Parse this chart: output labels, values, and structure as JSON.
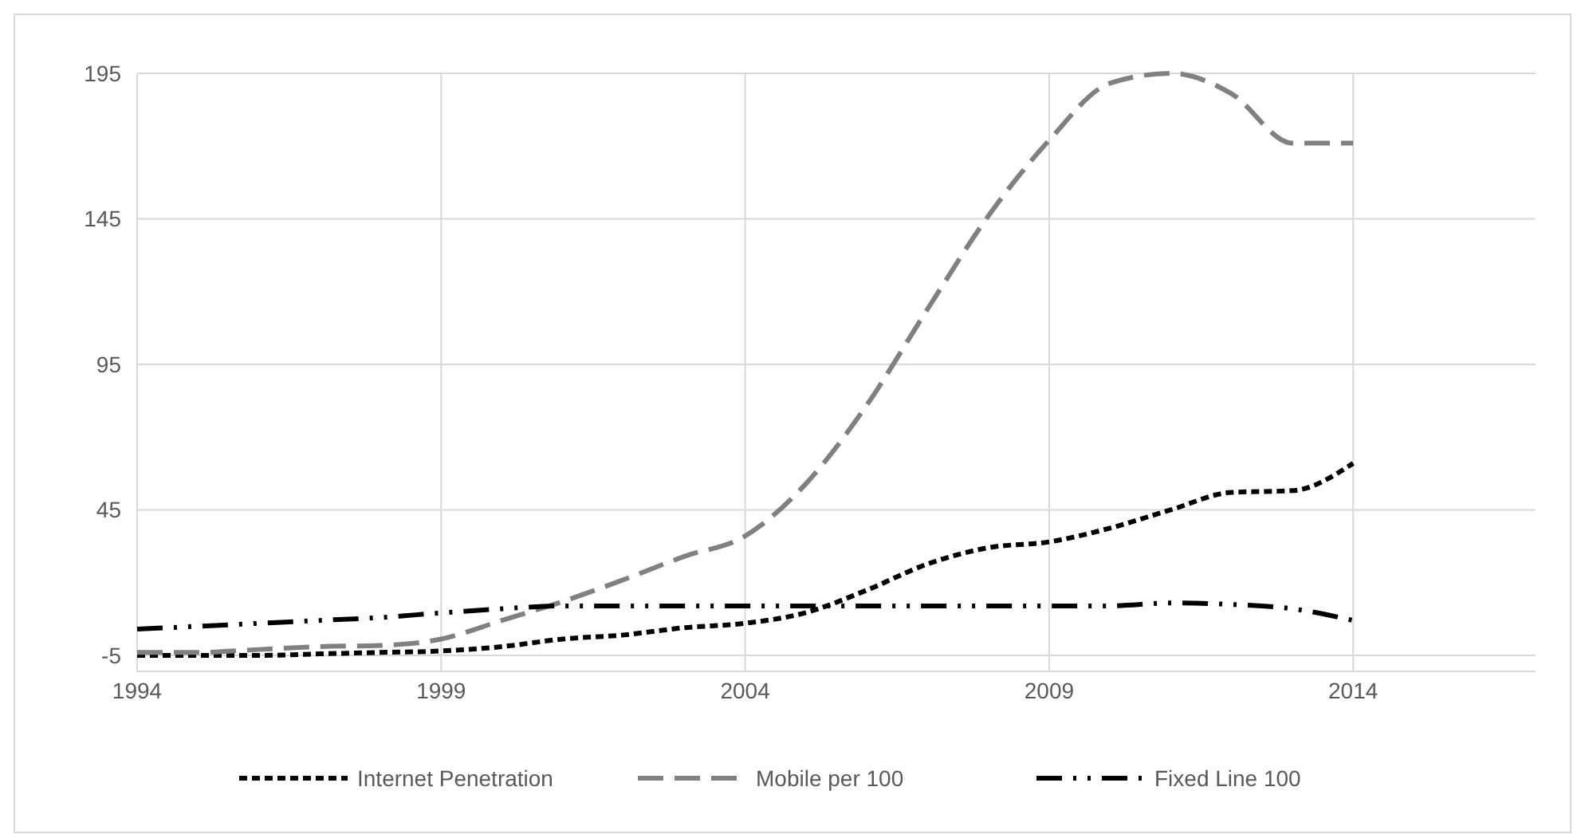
{
  "chart_data": {
    "type": "line",
    "x": [
      1994,
      1995,
      1996,
      1997,
      1998,
      1999,
      2000,
      2001,
      2002,
      2003,
      2004,
      2005,
      2006,
      2007,
      2008,
      2009,
      2010,
      2011,
      2012,
      2013,
      2014
    ],
    "xlim": [
      1994,
      2017
    ],
    "xticks": [
      1994,
      1999,
      2004,
      2009,
      2014
    ],
    "ylim": [
      -10.5,
      195
    ],
    "yticks": [
      -5,
      45,
      95,
      145,
      195
    ],
    "grid": true,
    "legend": "bottom",
    "marker": "none",
    "series": [
      {
        "name": "Internet Penetration",
        "color": "#000000",
        "line_style": "dashed",
        "values": [
          -5,
          -5,
          -5,
          -4.5,
          -4,
          -3.5,
          -2,
          0.6,
          2,
          4.5,
          6,
          9.7,
          17.4,
          26.4,
          32,
          34,
          38.7,
          45,
          51,
          51.6,
          61
        ]
      },
      {
        "name": "Mobile per 100",
        "color": "#808080",
        "line_style": "longdash",
        "values": [
          -4,
          -4,
          -3,
          -2,
          -1.6,
          0.6,
          7,
          13.5,
          21,
          29,
          36,
          54,
          81,
          114,
          146,
          172,
          191.6,
          195,
          188,
          171,
          171
        ]
      },
      {
        "name": "Fixed Line 100",
        "color": "#000000",
        "line_style": "dashdot",
        "values": [
          4,
          5,
          6,
          7,
          8,
          9.6,
          11,
          12,
          12,
          12,
          12,
          12,
          12,
          12,
          12,
          12,
          12,
          13,
          12.5,
          11,
          7
        ]
      }
    ]
  }
}
